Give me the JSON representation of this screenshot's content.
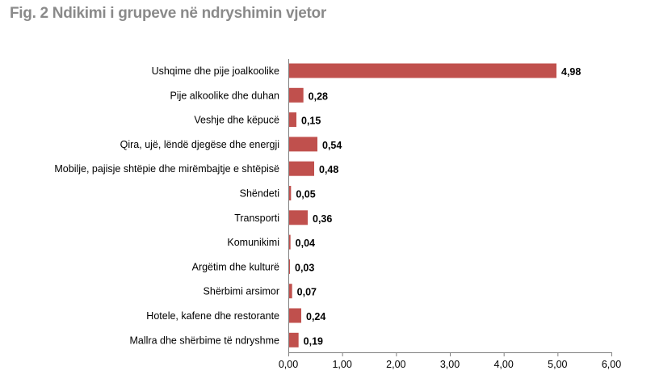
{
  "title": "Fig. 2 Ndikimi i grupeve në ndryshimin vjetor",
  "chart_data": {
    "type": "bar",
    "orientation": "horizontal",
    "title": "Fig. 2 Ndikimi i grupeve në ndryshimin vjetor",
    "categories": [
      "Ushqime dhe pije joalkoolike",
      "Pije alkoolike dhe duhan",
      "Veshje dhe këpucë",
      "Qira, ujë, lëndë djegëse dhe energji",
      "Mobilje, pajisje shtëpie dhe mirëmbajtje e shtëpisë",
      "Shëndeti",
      "Transporti",
      "Komunikimi",
      "Argëtim dhe kulturë",
      "Shërbimi arsimor",
      "Hotele, kafene dhe restorante",
      "Mallra dhe shërbime të ndryshme"
    ],
    "values": [
      4.98,
      0.28,
      0.15,
      0.54,
      0.48,
      0.05,
      0.36,
      0.04,
      0.03,
      0.07,
      0.24,
      0.19
    ],
    "value_labels": [
      "4,98",
      "0,28",
      "0,15",
      "0,54",
      "0,48",
      "0,05",
      "0,36",
      "0,04",
      "0,03",
      "0,07",
      "0,24",
      "0,19"
    ],
    "xlim": [
      0,
      6
    ],
    "xticks": [
      "0,00",
      "1,00",
      "2,00",
      "3,00",
      "4,00",
      "5,00",
      "6,00"
    ],
    "bar_color": "#c0504d",
    "grid": false,
    "legend": "none"
  }
}
